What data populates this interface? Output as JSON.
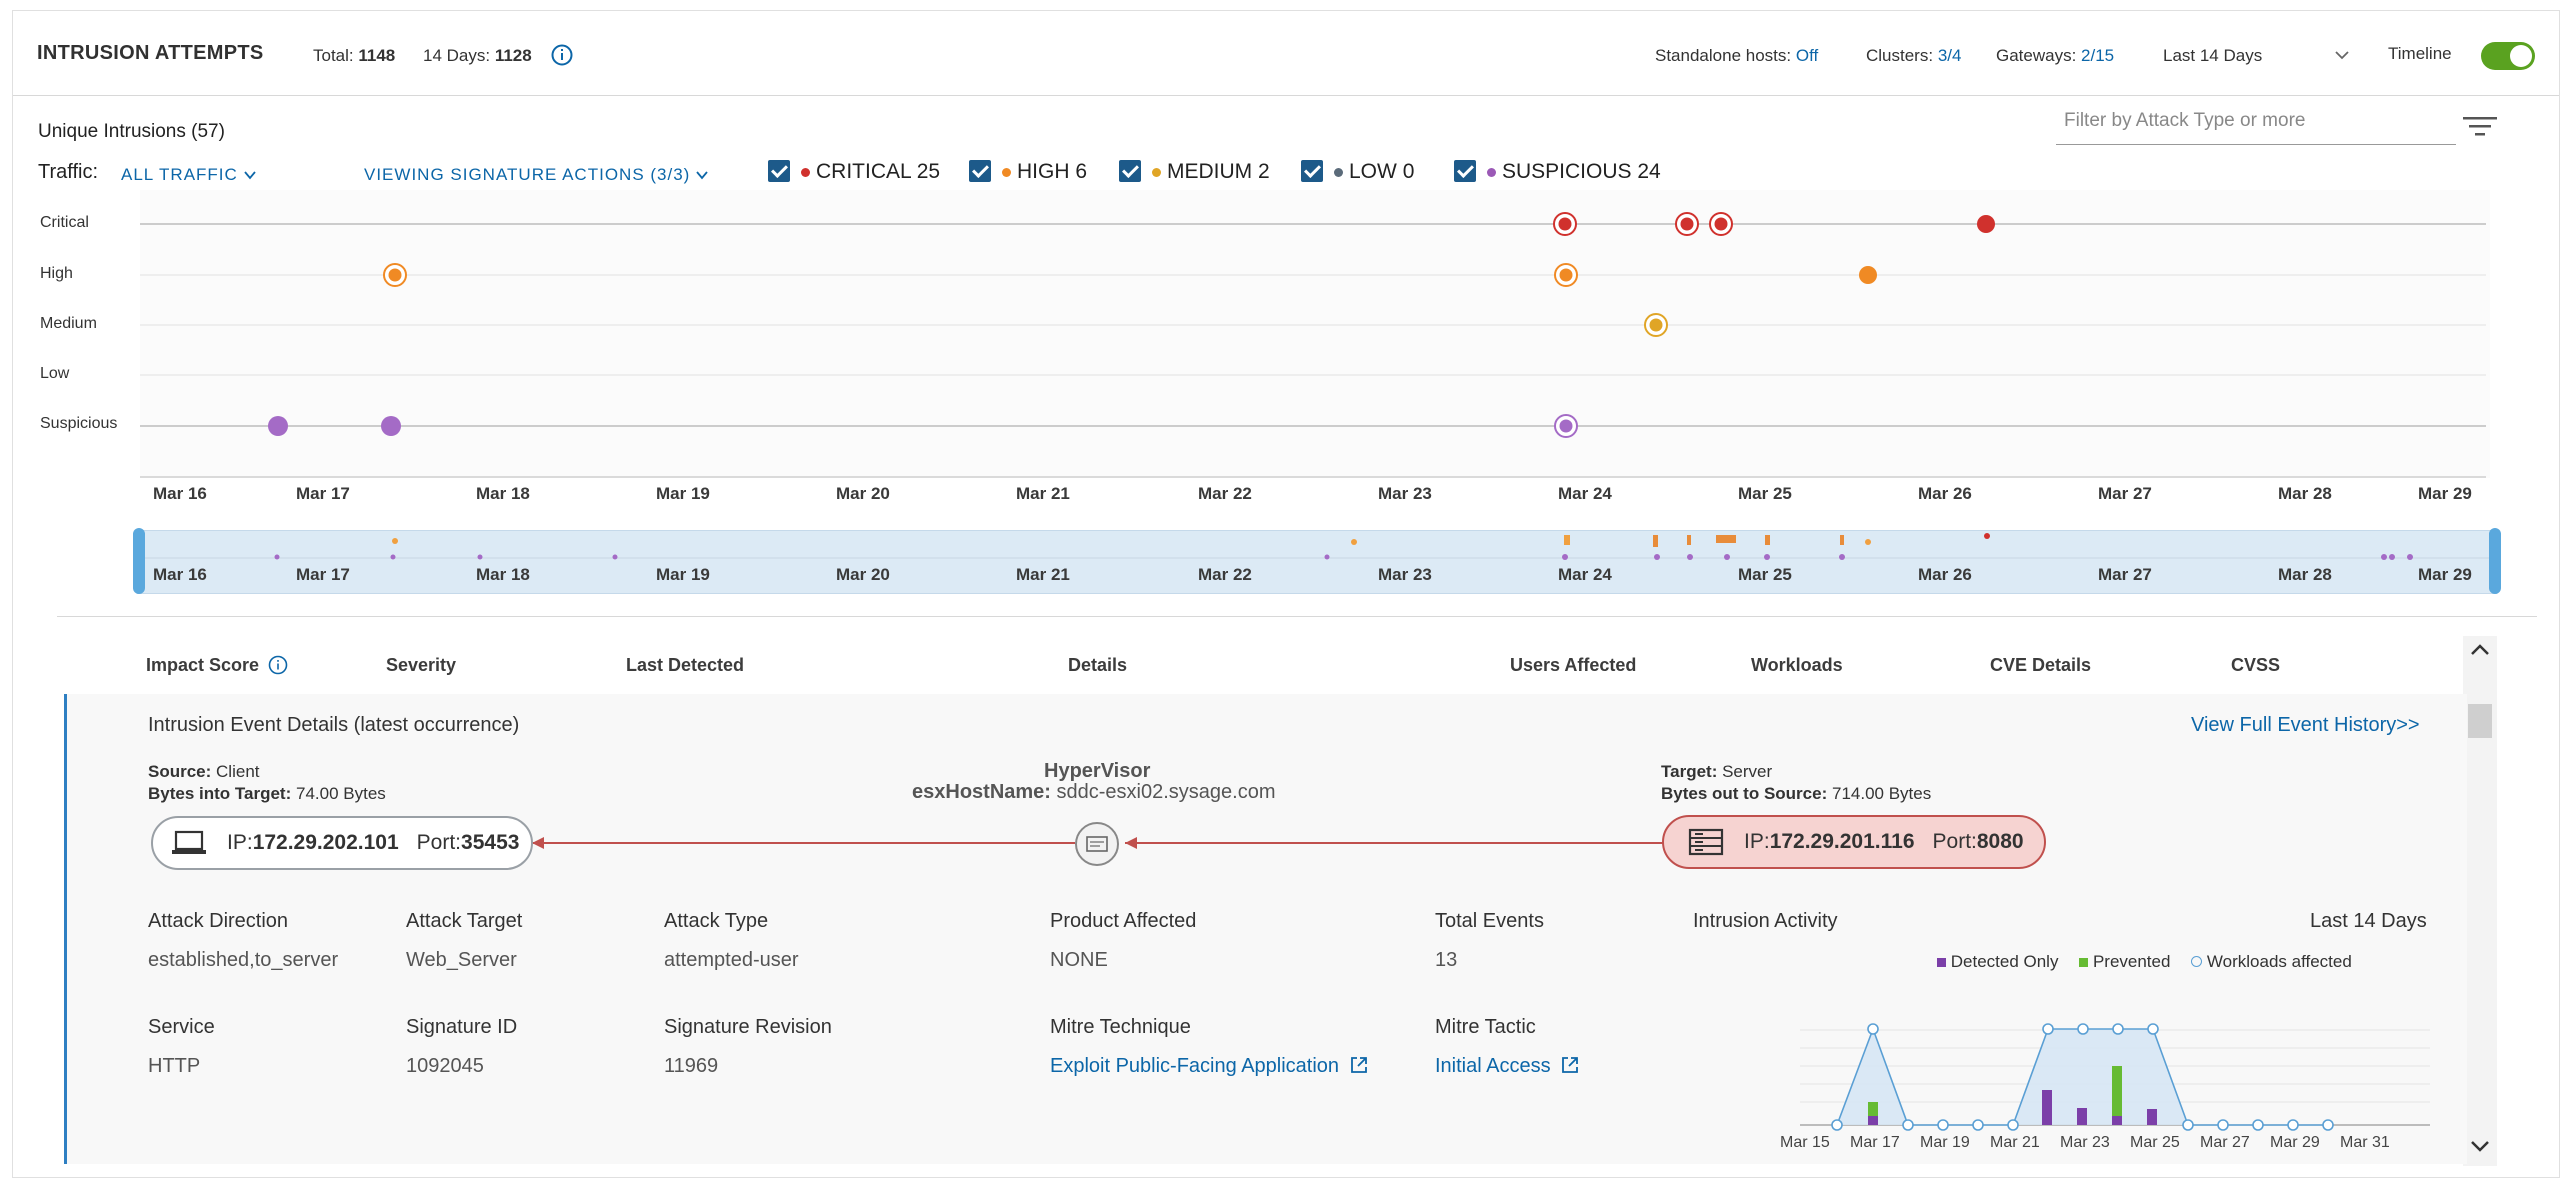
{
  "header": {
    "title": "INTRUSION ATTEMPTS",
    "total_label": "Total:",
    "total_value": "1148",
    "days_label": "14 Days:",
    "days_value": "1128",
    "standalone_label": "Standalone hosts:",
    "standalone_value": "Off",
    "clusters_label": "Clusters:",
    "clusters_value": "3/4",
    "gateways_label": "Gateways:",
    "gateways_value": "2/15",
    "range_select": "Last 14 Days",
    "timeline_label": "Timeline"
  },
  "filters": {
    "unique_intrusions": "Unique Intrusions (57)",
    "traffic_label": "Traffic:",
    "traffic_value": "ALL TRAFFIC",
    "viewing_actions": "VIEWING SIGNATURE ACTIONS (3/3)",
    "filter_placeholder": "Filter by Attack Type or more",
    "severities": [
      {
        "label": "CRITICAL",
        "count": "25",
        "color": "#d0312d"
      },
      {
        "label": "HIGH",
        "count": "6",
        "color": "#f08a24"
      },
      {
        "label": "MEDIUM",
        "count": "2",
        "color": "#e0a526"
      },
      {
        "label": "LOW",
        "count": "0",
        "color": "#5b6b7a"
      },
      {
        "label": "SUSPICIOUS",
        "count": "24",
        "color": "#9b59b6"
      }
    ]
  },
  "timeline": {
    "lanes": [
      "Critical",
      "High",
      "Medium",
      "Low",
      "Suspicious"
    ],
    "dates": [
      "Mar 16",
      "Mar 17",
      "Mar 18",
      "Mar 19",
      "Mar 20",
      "Mar 21",
      "Mar 22",
      "Mar 23",
      "Mar 24",
      "Mar 25",
      "Mar 26",
      "Mar 27",
      "Mar 28",
      "Mar 29"
    ]
  },
  "table": {
    "columns": [
      "Impact Score",
      "Severity",
      "Last Detected",
      "Details",
      "Users Affected",
      "Workloads",
      "CVE Details",
      "CVSS"
    ]
  },
  "event": {
    "title": "Intrusion Event Details (latest occurrence)",
    "history_link": "View Full Event History>>",
    "source_label": "Source:",
    "source_value": "Client",
    "bytes_in_label": "Bytes into Target:",
    "bytes_in_value": "74.00 Bytes",
    "hypervisor": "HyperVisor",
    "host_label": "esxHostName:",
    "host_value": "sddc-esxi02.sysage.com",
    "target_label": "Target:",
    "target_value": "Server",
    "bytes_out_label": "Bytes out to Source:",
    "bytes_out_value": "714.00 Bytes",
    "src_ip_label": "IP:",
    "src_ip": "172.29.202.101",
    "src_port_label": "Port:",
    "src_port": "35453",
    "dst_ip_label": "IP:",
    "dst_ip": "172.29.201.116",
    "dst_port_label": "Port:",
    "dst_port": "8080",
    "attack_direction_label": "Attack Direction",
    "attack_direction": "established,to_server",
    "attack_target_label": "Attack Target",
    "attack_target": "Web_Server",
    "attack_type_label": "Attack Type",
    "attack_type": "attempted-user",
    "product_label": "Product Affected",
    "product": "NONE",
    "total_events_label": "Total Events",
    "total_events": "13",
    "service_label": "Service",
    "service": "HTTP",
    "sig_id_label": "Signature ID",
    "sig_id": "1092045",
    "sig_rev_label": "Signature Revision",
    "sig_rev": "11969",
    "mitre_tech_label": "Mitre Technique",
    "mitre_tech": "Exploit Public-Facing Application",
    "mitre_tactic_label": "Mitre Tactic",
    "mitre_tactic": "Initial Access",
    "activity_label": "Intrusion Activity",
    "activity_range": "Last 14 Days",
    "legend": [
      {
        "label": "Detected Only",
        "color": "#7b3fa8"
      },
      {
        "label": "Prevented",
        "color": "#66bb33"
      },
      {
        "label": "Workloads affected",
        "color": "#5a9fd4"
      }
    ],
    "activity_dates": [
      "Mar 15",
      "Mar 17",
      "Mar 19",
      "Mar 21",
      "Mar 23",
      "Mar 25",
      "Mar 27",
      "Mar 29",
      "Mar 31"
    ]
  }
}
